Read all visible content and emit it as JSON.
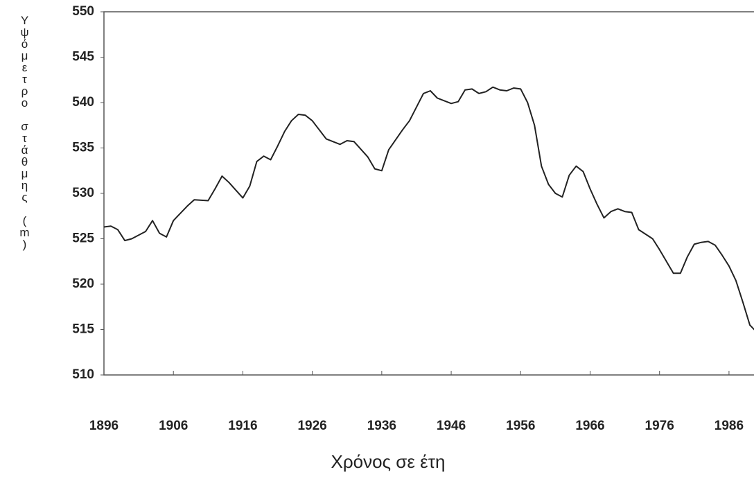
{
  "chart_data": {
    "type": "line",
    "xlabel": "Χρόνος σε έτη",
    "ylabel": "Υψόμετρο στάθμης (m)",
    "x": [
      1896,
      1897,
      1898,
      1899,
      1900,
      1902,
      1903,
      1904,
      1905,
      1906,
      1908,
      1909,
      1911,
      1912,
      1913,
      1914,
      1916,
      1917,
      1918,
      1919,
      1920,
      1921,
      1922,
      1923,
      1924,
      1925,
      1926,
      1928,
      1930,
      1931,
      1932,
      1934,
      1935,
      1936,
      1937,
      1939,
      1940,
      1942,
      1943,
      1944,
      1946,
      1947,
      1948,
      1949,
      1950,
      1951,
      1952,
      1953,
      1954,
      1955,
      1956,
      1957,
      1958,
      1959,
      1960,
      1961,
      1962,
      1963,
      1964,
      1965,
      1966,
      1967,
      1968,
      1969,
      1970,
      1971,
      1972,
      1973,
      1975,
      1976,
      1977,
      1978,
      1979,
      1980,
      1981,
      1982,
      1983,
      1984,
      1985,
      1986,
      1987,
      1988,
      1989,
      1990
    ],
    "series": [
      {
        "color": "#222222",
        "values": [
          526.3,
          526.4,
          526.0,
          524.8,
          525.0,
          525.8,
          527.0,
          525.6,
          525.2,
          527.0,
          528.6,
          529.3,
          529.2,
          530.5,
          531.9,
          531.2,
          529.5,
          530.8,
          533.5,
          534.1,
          533.7,
          535.2,
          536.8,
          538.0,
          538.7,
          538.6,
          538.0,
          536.0,
          535.4,
          535.8,
          535.7,
          534.0,
          532.7,
          532.5,
          534.8,
          537.0,
          538.0,
          541.0,
          541.3,
          540.5,
          539.9,
          540.1,
          541.4,
          541.5,
          541.0,
          541.2,
          541.7,
          541.4,
          541.3,
          541.6,
          541.5,
          540.0,
          537.5,
          533.0,
          531.0,
          530.0,
          529.6,
          532.0,
          533.0,
          532.4,
          530.5,
          528.8,
          527.3,
          528.0,
          528.3,
          528.0,
          527.9,
          526.0,
          525.0,
          523.8,
          522.5,
          521.2,
          521.2,
          523.0,
          524.4,
          524.6,
          524.7,
          524.3,
          523.2,
          522.0,
          520.4,
          518.0,
          515.5,
          514.7
        ]
      }
    ],
    "xlim": [
      1896,
      1990
    ],
    "xticks": [
      1896,
      1906,
      1916,
      1926,
      1936,
      1946,
      1956,
      1966,
      1976,
      1986
    ],
    "ylim": [
      510,
      550
    ],
    "yticks": [
      510,
      515,
      520,
      525,
      530,
      535,
      540,
      545,
      550
    ]
  }
}
